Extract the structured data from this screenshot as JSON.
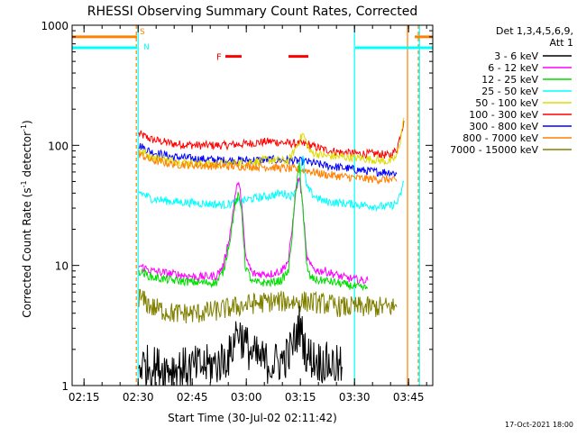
{
  "chart_data": {
    "type": "line",
    "title": "RHESSI Observing Summary Count Rates, Corrected",
    "xlabel": "Start Time (30-Jul-02 02:11:42)",
    "ylabel": "Corrected Count Rate (s",
    "ylabel_sup1": "-1",
    "ylabel_mid": " detector",
    "ylabel_sup2": "-1",
    "ylabel_end": ")",
    "yscale": "log",
    "ylim": [
      1,
      1000
    ],
    "xlim_minutes": [
      0,
      100
    ],
    "x_ticks": [
      {
        "label": "02:15",
        "t": 3.3
      },
      {
        "label": "02:30",
        "t": 18.3
      },
      {
        "label": "02:45",
        "t": 33.3
      },
      {
        "label": "03:00",
        "t": 48.3
      },
      {
        "label": "03:15",
        "t": 63.3
      },
      {
        "label": "03:30",
        "t": 78.3
      },
      {
        "label": "03:45",
        "t": 93.3
      }
    ],
    "y_ticks": [
      {
        "label": "1",
        "v": 1
      },
      {
        "label": "10",
        "v": 10
      },
      {
        "label": "100",
        "v": 100
      },
      {
        "label": "1000",
        "v": 1000
      }
    ],
    "legend": {
      "header1": "Det 1,3,4,5,6,9,",
      "header2": "Att 1",
      "entries": [
        {
          "label": "3 - 6 keV",
          "color": "#000000"
        },
        {
          "label": "6 - 12 keV",
          "color": "#ff00ff"
        },
        {
          "label": "12 - 25 keV",
          "color": "#00dd00"
        },
        {
          "label": "25 - 50 keV",
          "color": "#00ffff"
        },
        {
          "label": "50 - 100 keV",
          "color": "#dddd00"
        },
        {
          "label": "100 - 300 keV",
          "color": "#ff0000"
        },
        {
          "label": "300 - 800 keV",
          "color": "#0000ff"
        },
        {
          "label": "800 - 7000 keV",
          "color": "#ff8000"
        },
        {
          "label": "7000 - 15000 keV",
          "color": "#808000"
        }
      ]
    },
    "flags": {
      "saa_label": "S",
      "night_label": "N",
      "flare_label": "F",
      "saa_color": "#ff8000",
      "night_color": "#00ffff",
      "flare_color": "#ff0000",
      "saa_intervals": [
        [
          0,
          18.0
        ],
        [
          95.0,
          100
        ]
      ],
      "night_intervals": [
        [
          0,
          18.0
        ],
        [
          78.5,
          100
        ]
      ],
      "flare_intervals": [
        [
          42.5,
          47.0
        ],
        [
          60.0,
          65.5
        ]
      ],
      "saa_level": 800,
      "night_level": 650,
      "flare_level": 550
    },
    "vertical_markers": [
      {
        "t": 17.8,
        "color": "#ff8000",
        "style": "dashed"
      },
      {
        "t": 18.3,
        "color": "#00ffff",
        "style": "solid"
      },
      {
        "t": 78.3,
        "color": "#00ffff",
        "style": "solid"
      },
      {
        "t": 93.0,
        "color": "#ff8000",
        "style": "solid"
      },
      {
        "t": 96.0,
        "color": "#ff8000",
        "style": "dashed"
      },
      {
        "t": 96.3,
        "color": "#00ffff",
        "style": "solid"
      }
    ],
    "series": [
      {
        "name": "100 - 300 keV",
        "color": "#ff0000",
        "x": [
          18.5,
          22,
          28,
          35,
          42,
          48,
          55,
          60,
          65,
          70,
          75,
          80,
          85,
          88,
          90,
          91,
          92
        ],
        "y": [
          125,
          112,
          103,
          100,
          100,
          103,
          108,
          104,
          102,
          92,
          87,
          85,
          85,
          82,
          92,
          120,
          160
        ]
      },
      {
        "name": "300 - 800 keV",
        "color": "#0000ff",
        "x": [
          18.5,
          22,
          28,
          35,
          42,
          48,
          55,
          60,
          65,
          70,
          75,
          80,
          85,
          88,
          90
        ],
        "y": [
          100,
          88,
          80,
          77,
          75,
          75,
          76,
          75,
          73,
          68,
          65,
          62,
          60,
          60,
          58
        ]
      },
      {
        "name": "50 - 100 keV",
        "color": "#dddd00",
        "x": [
          18.5,
          22,
          28,
          35,
          42,
          48,
          55,
          60,
          62,
          64,
          66,
          70,
          75,
          80,
          85,
          88,
          90,
          91,
          92
        ],
        "y": [
          92,
          80,
          74,
          70,
          70,
          72,
          76,
          74,
          95,
          125,
          88,
          82,
          80,
          78,
          75,
          73,
          80,
          110,
          170
        ]
      },
      {
        "name": "800 - 7000 keV",
        "color": "#ff8000",
        "x": [
          18.5,
          22,
          28,
          35,
          42,
          48,
          55,
          60,
          65,
          70,
          75,
          80,
          85,
          88,
          90
        ],
        "y": [
          85,
          75,
          70,
          68,
          67,
          67,
          66,
          64,
          62,
          57,
          55,
          53,
          52,
          52,
          50
        ]
      },
      {
        "name": "25 - 50 keV",
        "color": "#00ffff",
        "x": [
          18.5,
          22,
          28,
          35,
          42,
          45,
          47,
          48,
          50,
          55,
          58,
          61,
          63,
          64,
          65,
          67,
          70,
          75,
          80,
          85,
          88,
          90,
          91,
          92
        ],
        "y": [
          41,
          36,
          34,
          33,
          32,
          33,
          34,
          35,
          36,
          38,
          40,
          38,
          52,
          80,
          45,
          38,
          34,
          33,
          32,
          31,
          31,
          33,
          38,
          50
        ]
      },
      {
        "name": "6 - 12 keV",
        "color": "#ff00ff",
        "x": [
          18.5,
          22,
          28,
          35,
          40,
          42,
          44,
          45,
          46,
          47,
          48,
          50,
          55,
          58,
          60,
          61,
          62,
          63,
          64,
          65,
          66,
          68,
          70,
          75,
          80,
          82
        ],
        "y": [
          10,
          9,
          8.5,
          8,
          8.2,
          10,
          20,
          35,
          50,
          35,
          12,
          8.5,
          8.5,
          9,
          11,
          20,
          42,
          55,
          30,
          12,
          10,
          9,
          9,
          8,
          7.5,
          7.5
        ]
      },
      {
        "name": "12 - 25 keV",
        "color": "#00dd00",
        "x": [
          18.5,
          22,
          28,
          35,
          40,
          42,
          44,
          45,
          46,
          47,
          48,
          50,
          55,
          58,
          60,
          61,
          62,
          63,
          64,
          65,
          66,
          68,
          70,
          75,
          80,
          82
        ],
        "y": [
          9,
          8,
          7.5,
          7.2,
          7.2,
          9,
          18,
          30,
          38,
          30,
          10,
          7.2,
          7.2,
          7.5,
          9,
          18,
          40,
          70,
          30,
          10,
          8,
          7.5,
          7.5,
          7,
          6.5,
          6.5
        ]
      },
      {
        "name": "7000 - 15000 keV",
        "color": "#808000",
        "x": [
          18.5,
          22,
          28,
          35,
          40,
          45,
          50,
          55,
          60,
          65,
          70,
          75,
          80,
          85,
          88,
          90
        ],
        "y": [
          5.5,
          4.5,
          4.0,
          4.0,
          4.2,
          4.5,
          4.8,
          5.0,
          5.0,
          5.0,
          4.8,
          4.5,
          4.5,
          4.5,
          4.5,
          4.5
        ]
      },
      {
        "name": "3 - 6 keV",
        "color": "#000000",
        "x": [
          18.5,
          25,
          32,
          40,
          44,
          45,
          46,
          47,
          50,
          55,
          58,
          60,
          62,
          63,
          64,
          65,
          68,
          72,
          75
        ],
        "y": [
          1.5,
          1.4,
          1.4,
          1.5,
          1.8,
          2.5,
          3.0,
          2.5,
          1.8,
          1.5,
          1.6,
          1.8,
          2.5,
          3.2,
          2.5,
          1.8,
          1.6,
          1.5,
          1.4
        ]
      }
    ],
    "timestamp": "17-Oct-2021 18:00"
  }
}
